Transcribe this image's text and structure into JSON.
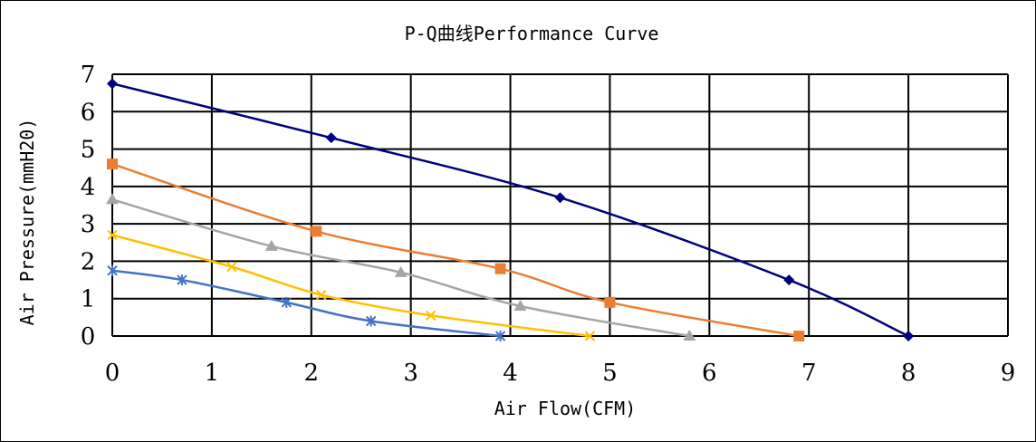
{
  "chart_data": {
    "type": "line",
    "title": "P-Q曲线Performance Curve",
    "xlabel": "Air Flow(CFM)",
    "ylabel": "Air Pressure(mmH20)",
    "xlim": [
      0,
      9
    ],
    "ylim": [
      0,
      7
    ],
    "xticks": [
      "0",
      "1",
      "2",
      "3",
      "4",
      "5",
      "6",
      "7",
      "8",
      "9"
    ],
    "yticks": [
      "0",
      "1",
      "2",
      "3",
      "4",
      "5",
      "6",
      "7"
    ],
    "grid": true,
    "legend": "none",
    "series": [
      {
        "color": "#000080",
        "marker": "diamond",
        "x": [
          0,
          2.2,
          4.5,
          6.8,
          8.0
        ],
        "y": [
          6.75,
          5.3,
          3.7,
          1.5,
          0
        ]
      },
      {
        "color": "#ED7D31",
        "marker": "square",
        "x": [
          0,
          2.05,
          3.9,
          5.0,
          6.9
        ],
        "y": [
          4.6,
          2.8,
          1.8,
          0.9,
          0
        ]
      },
      {
        "color": "#A5A5A5",
        "marker": "triangle",
        "x": [
          0,
          1.6,
          2.9,
          4.1,
          5.8
        ],
        "y": [
          3.65,
          2.4,
          1.7,
          0.8,
          0
        ]
      },
      {
        "color": "#FFC000",
        "marker": "x",
        "x": [
          0,
          1.2,
          2.1,
          3.2,
          4.8
        ],
        "y": [
          2.7,
          1.85,
          1.1,
          0.55,
          0
        ]
      },
      {
        "color": "#4472C4",
        "marker": "asterisk",
        "x": [
          0,
          0.7,
          1.75,
          2.6,
          3.9
        ],
        "y": [
          1.75,
          1.5,
          0.9,
          0.4,
          0
        ]
      }
    ]
  }
}
